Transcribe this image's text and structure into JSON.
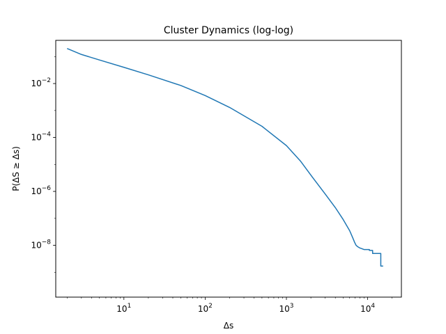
{
  "chart_data": {
    "type": "line",
    "title": "Cluster Dynamics (log-log)",
    "xlabel": "Δs",
    "ylabel": "P(ΔS ≥ Δs)",
    "xscale": "log",
    "yscale": "log",
    "xlim": [
      1.45,
      26000
    ],
    "ylim": [
      1.2e-10,
      0.4
    ],
    "grid": false,
    "x_ticks": [
      {
        "value": 10,
        "base": "10",
        "exp": "1"
      },
      {
        "value": 100,
        "base": "10",
        "exp": "2"
      },
      {
        "value": 1000,
        "base": "10",
        "exp": "3"
      },
      {
        "value": 10000,
        "base": "10",
        "exp": "4"
      }
    ],
    "y_ticks": [
      {
        "value": 1e-08,
        "base": "10",
        "exp": "−8"
      },
      {
        "value": 1e-06,
        "base": "10",
        "exp": "−6"
      },
      {
        "value": 0.0001,
        "base": "10",
        "exp": "−4"
      },
      {
        "value": 0.01,
        "base": "10",
        "exp": "−2"
      }
    ],
    "series": [
      {
        "color": "#1f77b4",
        "x": [
          2,
          3,
          5,
          10,
          20,
          50,
          100,
          200,
          500,
          1000,
          1500,
          2000,
          3000,
          4000,
          5000,
          5600,
          6000,
          6300,
          6600,
          6900,
          7200,
          7500,
          8000,
          8500,
          9000,
          10500,
          10500,
          11500,
          11500,
          13000,
          13500,
          14500,
          14500,
          15500
        ],
        "y": [
          0.2,
          0.12,
          0.075,
          0.04,
          0.021,
          0.0085,
          0.0036,
          0.0013,
          0.00026,
          5e-05,
          1.3e-05,
          4e-06,
          8e-07,
          2.5e-07,
          9e-08,
          5e-08,
          3.5e-08,
          2.5e-08,
          1.8e-08,
          1.3e-08,
          1e-08,
          9e-09,
          8e-09,
          7.5e-09,
          7e-09,
          7e-09,
          6.5e-09,
          6.5e-09,
          5e-09,
          5e-09,
          5e-09,
          5e-09,
          1.7e-09,
          1.7e-09
        ]
      }
    ]
  }
}
